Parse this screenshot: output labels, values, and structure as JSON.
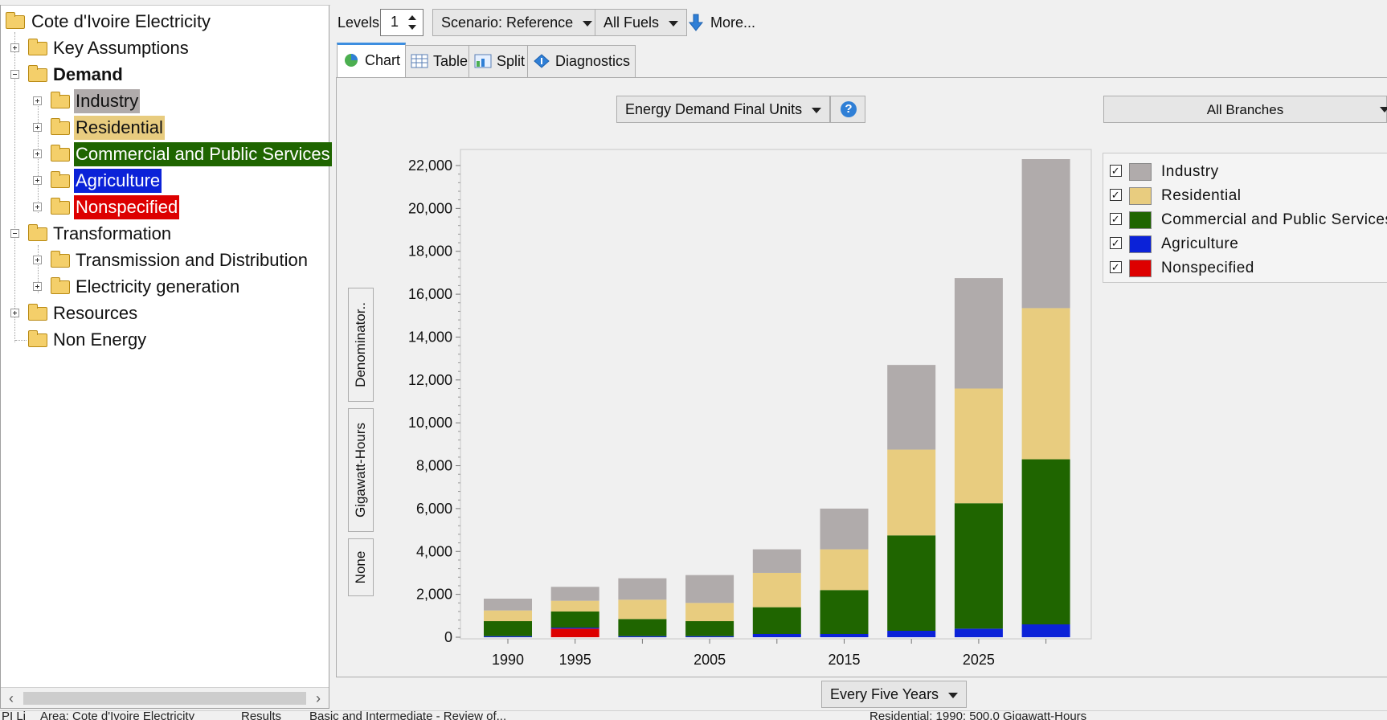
{
  "tree": {
    "root": "Cote d'Ivoire Electricity",
    "items": [
      {
        "label": "Key Assumptions"
      },
      {
        "label": "Demand"
      },
      {
        "label": "Industry"
      },
      {
        "label": "Residential"
      },
      {
        "label": "Commercial and Public Services"
      },
      {
        "label": "Agriculture"
      },
      {
        "label": "Nonspecified"
      },
      {
        "label": "Transformation"
      },
      {
        "label": "Transmission and Distribution"
      },
      {
        "label": "Electricity generation"
      },
      {
        "label": "Resources"
      },
      {
        "label": "Non Energy"
      }
    ]
  },
  "toolbar": {
    "levels_label": "Levels:",
    "levels_value": "1",
    "scenario": "Scenario: Reference",
    "fuels": "All Fuels",
    "more": "More..."
  },
  "tabs": [
    {
      "label": "Chart",
      "active": true
    },
    {
      "label": "Table"
    },
    {
      "label": "Split"
    },
    {
      "label": "Diagnostics"
    }
  ],
  "view": {
    "units_select": "Energy Demand Final Units",
    "help": "?",
    "branches_select": "All Branches",
    "period_select": "Every Five Years"
  },
  "side_tabs": [
    "Denominator..",
    "Gigawatt-Hours",
    "None"
  ],
  "colors": {
    "Industry": "#b0abab",
    "Residential": "#e8cc7f",
    "Commercial and Public Services": "#1f6500",
    "Agriculture": "#0b22d8",
    "Nonspecified": "#dd0000"
  },
  "chart_data": {
    "type": "bar",
    "stacked": true,
    "x": [
      1990,
      1995,
      2000,
      2005,
      2010,
      2015,
      2020,
      2025,
      2030
    ],
    "x_tick_labels": [
      "1990",
      "1995",
      "",
      "2005",
      "",
      "2015",
      "",
      "2025",
      ""
    ],
    "ylim": [
      0,
      22000
    ],
    "y_ticks": [
      0,
      2000,
      4000,
      6000,
      8000,
      10000,
      12000,
      14000,
      16000,
      18000,
      20000,
      22000
    ],
    "y_tick_labels": [
      "0",
      "2,000",
      "4,000",
      "6,000",
      "8,000",
      "10,000",
      "12,000",
      "14,000",
      "16,000",
      "18,000",
      "20,000",
      "22,000"
    ],
    "ylabel": "Gigawatt-Hours",
    "legend_position": "right",
    "series": [
      {
        "name": "Nonspecified",
        "values": [
          0,
          400,
          0,
          0,
          0,
          0,
          0,
          0,
          0
        ]
      },
      {
        "name": "Agriculture",
        "values": [
          50,
          50,
          50,
          50,
          150,
          150,
          300,
          400,
          600
        ]
      },
      {
        "name": "Commercial and Public Services",
        "values": [
          700,
          750,
          800,
          700,
          1250,
          2050,
          4450,
          5850,
          7700
        ]
      },
      {
        "name": "Residential",
        "values": [
          500,
          500,
          900,
          850,
          1600,
          1900,
          4000,
          5350,
          7050
        ]
      },
      {
        "name": "Industry",
        "values": [
          550,
          650,
          1000,
          1300,
          1100,
          1900,
          3950,
          5150,
          6950
        ]
      }
    ]
  },
  "status": {
    "s1": "PI Li",
    "s2": "Area: Cote d'Ivoire Electricity",
    "s3": "Results",
    "s4": "Basic and Intermediate - Review of...",
    "s5": "Residential: 1990: 500.0 Gigawatt-Hours"
  }
}
